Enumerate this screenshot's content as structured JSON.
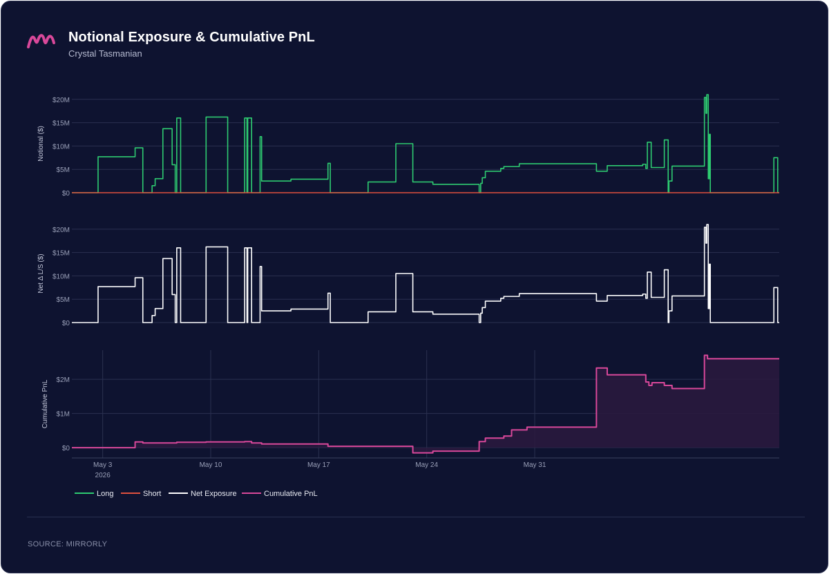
{
  "header": {
    "title": "Notional Exposure & Cumulative PnL",
    "subtitle": "Crystal Tasmanian"
  },
  "footer": {
    "source": "SOURCE: MIRRORLY"
  },
  "colors": {
    "background": "#0e1330",
    "long": "#2ecc71",
    "short": "#e0513e",
    "net": "#ffffff",
    "pnl": "#d9489a",
    "pnl_fill": "#2a1a3e",
    "grid": "#2b3150",
    "axis_text": "#9aa0b8"
  },
  "chart_data": [
    {
      "type": "line",
      "ylabel": "Notional ($)",
      "ylim": [
        0,
        21000000
      ],
      "yticks": [
        0,
        5000000,
        10000000,
        15000000,
        20000000
      ],
      "ytick_labels": [
        "$0",
        "$5M",
        "$10M",
        "$15M",
        "$20M"
      ],
      "x_unit": "days since start of day, May 1 2026",
      "series": [
        {
          "name": "Long",
          "points": [
            [
              0.0,
              0
            ],
            [
              1.7,
              0
            ],
            [
              1.7,
              7.7
            ],
            [
              4.1,
              7.7
            ],
            [
              4.1,
              9.6
            ],
            [
              4.6,
              9.6
            ],
            [
              4.6,
              0
            ],
            [
              5.2,
              0
            ],
            [
              5.2,
              1.5
            ],
            [
              5.4,
              1.5
            ],
            [
              5.4,
              3.0
            ],
            [
              5.9,
              3.0
            ],
            [
              5.9,
              13.7
            ],
            [
              6.5,
              13.7
            ],
            [
              6.5,
              6.0
            ],
            [
              6.7,
              6.0
            ],
            [
              6.7,
              0
            ],
            [
              6.8,
              0
            ],
            [
              6.8,
              16.0
            ],
            [
              7.05,
              16.0
            ],
            [
              7.05,
              0
            ],
            [
              8.7,
              0
            ],
            [
              8.7,
              16.2
            ],
            [
              10.1,
              16.2
            ],
            [
              10.1,
              0
            ],
            [
              11.2,
              0
            ],
            [
              11.2,
              16.0
            ],
            [
              11.35,
              16.0
            ],
            [
              11.35,
              0
            ],
            [
              11.4,
              0
            ],
            [
              11.4,
              16.0
            ],
            [
              11.65,
              16.0
            ],
            [
              11.65,
              0
            ],
            [
              12.2,
              0
            ],
            [
              12.2,
              12.0
            ],
            [
              12.3,
              12.0
            ],
            [
              12.3,
              2.5
            ],
            [
              14.2,
              2.5
            ],
            [
              14.2,
              2.9
            ],
            [
              16.6,
              2.9
            ],
            [
              16.6,
              6.3
            ],
            [
              16.75,
              6.3
            ],
            [
              16.75,
              0
            ],
            [
              19.2,
              0
            ],
            [
              19.2,
              2.3
            ],
            [
              21.0,
              2.3
            ],
            [
              21.0,
              10.5
            ],
            [
              22.1,
              10.5
            ],
            [
              22.1,
              2.3
            ],
            [
              23.4,
              2.3
            ],
            [
              23.4,
              1.8
            ],
            [
              26.4,
              1.8
            ],
            [
              26.4,
              0
            ],
            [
              26.5,
              0
            ],
            [
              26.5,
              2.0
            ],
            [
              26.6,
              2.0
            ],
            [
              26.6,
              3.2
            ],
            [
              26.8,
              3.2
            ],
            [
              26.8,
              4.6
            ],
            [
              27.8,
              4.6
            ],
            [
              27.8,
              5.2
            ],
            [
              28.0,
              5.2
            ],
            [
              28.0,
              5.6
            ],
            [
              29.0,
              5.6
            ],
            [
              29.0,
              6.2
            ],
            [
              34.0,
              6.2
            ],
            [
              34.0,
              4.6
            ],
            [
              34.7,
              4.6
            ],
            [
              34.7,
              5.8
            ],
            [
              37.0,
              5.8
            ],
            [
              37.0,
              6.1
            ],
            [
              37.2,
              6.1
            ],
            [
              37.2,
              5.2
            ],
            [
              37.3,
              5.2
            ],
            [
              37.3,
              10.8
            ],
            [
              37.55,
              10.8
            ],
            [
              37.55,
              5.4
            ],
            [
              38.4,
              5.4
            ],
            [
              38.4,
              11.3
            ],
            [
              38.65,
              11.3
            ],
            [
              38.65,
              0
            ],
            [
              38.7,
              0
            ],
            [
              38.7,
              2.5
            ],
            [
              38.9,
              2.5
            ],
            [
              38.9,
              5.7
            ],
            [
              41.0,
              5.7
            ],
            [
              41.0,
              20.4
            ],
            [
              41.1,
              20.4
            ],
            [
              41.1,
              17.0
            ],
            [
              41.15,
              17.0
            ],
            [
              41.15,
              21.0
            ],
            [
              41.25,
              21.0
            ],
            [
              41.25,
              3.0
            ],
            [
              41.32,
              3.0
            ],
            [
              41.32,
              12.5
            ],
            [
              41.38,
              12.5
            ],
            [
              41.38,
              0
            ],
            [
              45.5,
              0
            ],
            [
              45.5,
              7.5
            ],
            [
              45.75,
              7.5
            ],
            [
              45.75,
              0
            ],
            [
              45.85,
              0
            ]
          ],
          "y_unit": "millions $"
        },
        {
          "name": "Short",
          "points": [
            [
              0.0,
              0
            ],
            [
              45.85,
              0
            ]
          ],
          "y_unit": "millions $"
        }
      ]
    },
    {
      "type": "line",
      "ylabel": "Net Δ L/S ($)",
      "ylim": [
        0,
        21000000
      ],
      "yticks": [
        0,
        5000000,
        10000000,
        15000000,
        20000000
      ],
      "ytick_labels": [
        "$0",
        "$5M",
        "$10M",
        "$15M",
        "$20M"
      ],
      "series": [
        {
          "name": "Net Exposure",
          "same_as": "Long",
          "y_unit": "millions $"
        }
      ]
    },
    {
      "type": "area",
      "ylabel": "Cumulative PnL",
      "ylim": [
        -300000,
        2850000
      ],
      "yticks": [
        0,
        1000000,
        2000000
      ],
      "ytick_labels": [
        "$0",
        "$1M",
        "$2M"
      ],
      "x_ticks": [
        {
          "label": "May 3",
          "sub": "2026",
          "x": 2
        },
        {
          "label": "May 10",
          "sub": "",
          "x": 9
        },
        {
          "label": "May 17",
          "sub": "",
          "x": 16
        },
        {
          "label": "May 24",
          "sub": "",
          "x": 23
        },
        {
          "label": "May 31",
          "sub": "",
          "x": 30
        }
      ],
      "series": [
        {
          "name": "Cumulative PnL",
          "points": [
            [
              0.0,
              0
            ],
            [
              4.1,
              0
            ],
            [
              4.1,
              0.17
            ],
            [
              4.6,
              0.17
            ],
            [
              4.6,
              0.14
            ],
            [
              6.8,
              0.14
            ],
            [
              6.8,
              0.16
            ],
            [
              8.7,
              0.16
            ],
            [
              8.7,
              0.17
            ],
            [
              11.2,
              0.17
            ],
            [
              11.2,
              0.18
            ],
            [
              11.65,
              0.18
            ],
            [
              11.65,
              0.14
            ],
            [
              12.3,
              0.14
            ],
            [
              12.3,
              0.11
            ],
            [
              16.6,
              0.11
            ],
            [
              16.6,
              0.04
            ],
            [
              22.1,
              0.04
            ],
            [
              22.1,
              -0.15
            ],
            [
              23.4,
              -0.15
            ],
            [
              23.4,
              -0.1
            ],
            [
              26.4,
              -0.1
            ],
            [
              26.4,
              0.18
            ],
            [
              26.8,
              0.18
            ],
            [
              26.8,
              0.28
            ],
            [
              28.0,
              0.28
            ],
            [
              28.0,
              0.34
            ],
            [
              28.5,
              0.34
            ],
            [
              28.5,
              0.52
            ],
            [
              29.5,
              0.52
            ],
            [
              29.5,
              0.6
            ],
            [
              34.0,
              0.6
            ],
            [
              34.0,
              2.33
            ],
            [
              34.7,
              2.33
            ],
            [
              34.7,
              2.13
            ],
            [
              37.2,
              2.13
            ],
            [
              37.2,
              1.92
            ],
            [
              37.4,
              1.92
            ],
            [
              37.4,
              1.82
            ],
            [
              37.6,
              1.82
            ],
            [
              37.6,
              1.9
            ],
            [
              38.4,
              1.9
            ],
            [
              38.4,
              1.82
            ],
            [
              38.9,
              1.82
            ],
            [
              38.9,
              1.73
            ],
            [
              41.0,
              1.73
            ],
            [
              41.0,
              2.7
            ],
            [
              41.2,
              2.7
            ],
            [
              41.2,
              2.6
            ],
            [
              45.85,
              2.6
            ]
          ],
          "y_unit": "millions $"
        }
      ]
    }
  ],
  "legend": {
    "placement": "bottom-left",
    "items": [
      {
        "label": "Long",
        "color": "#2ecc71"
      },
      {
        "label": "Short",
        "color": "#e0513e"
      },
      {
        "label": "Net Exposure",
        "color": "#ffffff"
      },
      {
        "label": "Cumulative PnL",
        "color": "#d9489a"
      }
    ]
  }
}
